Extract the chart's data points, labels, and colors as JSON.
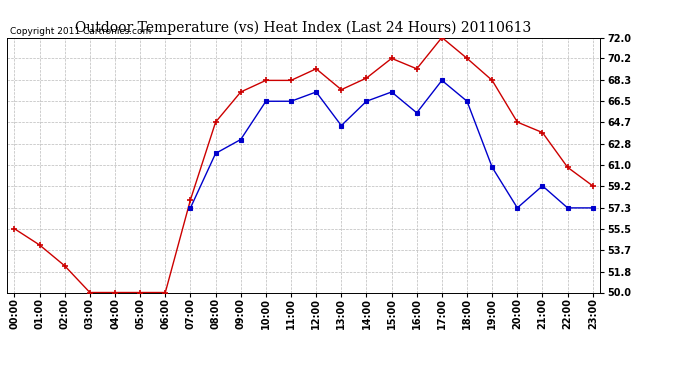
{
  "title": "Outdoor Temperature (vs) Heat Index (Last 24 Hours) 20110613",
  "copyright": "Copyright 2011 Cartronics.com",
  "hours": [
    "00:00",
    "01:00",
    "02:00",
    "03:00",
    "04:00",
    "05:00",
    "06:00",
    "07:00",
    "08:00",
    "09:00",
    "10:00",
    "11:00",
    "12:00",
    "13:00",
    "14:00",
    "15:00",
    "16:00",
    "17:00",
    "18:00",
    "19:00",
    "20:00",
    "21:00",
    "22:00",
    "23:00"
  ],
  "temp": [
    55.5,
    54.1,
    52.3,
    50.0,
    50.0,
    50.0,
    50.0,
    58.0,
    64.7,
    67.3,
    68.3,
    68.3,
    69.3,
    67.5,
    68.5,
    70.2,
    69.3,
    72.0,
    70.2,
    68.3,
    64.7,
    63.8,
    60.8,
    59.2
  ],
  "heat_index": [
    null,
    null,
    null,
    null,
    null,
    null,
    null,
    57.3,
    62.0,
    63.2,
    66.5,
    66.5,
    67.3,
    64.4,
    66.5,
    67.3,
    65.5,
    68.3,
    66.5,
    60.8,
    57.3,
    59.2,
    57.3,
    57.3
  ],
  "ylim_min": 50.0,
  "ylim_max": 72.0,
  "ytick_values": [
    50.0,
    51.8,
    53.7,
    55.5,
    57.3,
    59.2,
    61.0,
    62.8,
    64.7,
    66.5,
    68.3,
    70.2,
    72.0
  ],
  "temp_color": "#cc0000",
  "heat_color": "#0000cc",
  "grid_color": "#bbbbbb",
  "bg_color": "#ffffff",
  "plot_bg_color": "#ffffff",
  "title_fontsize": 10,
  "tick_fontsize": 7,
  "copyright_fontsize": 6.5
}
